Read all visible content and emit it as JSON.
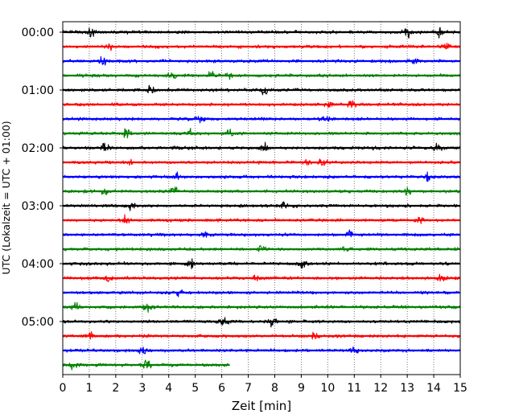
{
  "chart_data": {
    "type": "line",
    "title": "",
    "xlabel": "Zeit  [min]",
    "ylabel": "UTC (Lokalzeit = UTC + 01:00)",
    "xlim": [
      0,
      15
    ],
    "x_ticks": [
      "0",
      "1",
      "2",
      "3",
      "4",
      "5",
      "6",
      "7",
      "8",
      "9",
      "10",
      "11",
      "12",
      "13",
      "14",
      "15"
    ],
    "y_ticks": [
      {
        "label": "00:00",
        "row": 0
      },
      {
        "label": "01:00",
        "row": 4
      },
      {
        "label": "02:00",
        "row": 8
      },
      {
        "label": "03:00",
        "row": 12
      },
      {
        "label": "04:00",
        "row": 16
      },
      {
        "label": "05:00",
        "row": 20
      }
    ],
    "grid": "vertical-dotted",
    "trace_colors": [
      "#000000",
      "#ff0000",
      "#0000ff",
      "#008000"
    ],
    "rows": 24,
    "minutes_per_row": 15,
    "last_row_end_minute": 6.3,
    "series": [
      {
        "start": "00:00",
        "color": "#000000",
        "duration_min": 15,
        "events_min": [
          1.1,
          13.0,
          14.2
        ]
      },
      {
        "start": "00:15",
        "color": "#ff0000",
        "duration_min": 15,
        "events_min": [
          1.7,
          14.5
        ]
      },
      {
        "start": "00:30",
        "color": "#0000ff",
        "duration_min": 15,
        "events_min": [
          1.5,
          13.3
        ]
      },
      {
        "start": "00:45",
        "color": "#008000",
        "duration_min": 15,
        "events_min": [
          4.1,
          5.6,
          6.3
        ]
      },
      {
        "start": "01:00",
        "color": "#000000",
        "duration_min": 15,
        "events_min": [
          3.3,
          7.6
        ]
      },
      {
        "start": "01:15",
        "color": "#ff0000",
        "duration_min": 15,
        "events_min": [
          10.1,
          10.9
        ]
      },
      {
        "start": "01:30",
        "color": "#0000ff",
        "duration_min": 15,
        "events_min": [
          5.2,
          9.9
        ]
      },
      {
        "start": "01:45",
        "color": "#008000",
        "duration_min": 15,
        "events_min": [
          2.4,
          4.8,
          6.3
        ]
      },
      {
        "start": "02:00",
        "color": "#000000",
        "duration_min": 15,
        "events_min": [
          1.6,
          7.6,
          14.1
        ]
      },
      {
        "start": "02:15",
        "color": "#ff0000",
        "duration_min": 15,
        "events_min": [
          2.5,
          9.2,
          9.8
        ]
      },
      {
        "start": "02:30",
        "color": "#0000ff",
        "duration_min": 15,
        "events_min": [
          4.3,
          13.8
        ]
      },
      {
        "start": "02:45",
        "color": "#008000",
        "duration_min": 15,
        "events_min": [
          1.6,
          4.2,
          13.0
        ]
      },
      {
        "start": "03:00",
        "color": "#000000",
        "duration_min": 15,
        "events_min": [
          2.6,
          8.3
        ]
      },
      {
        "start": "03:15",
        "color": "#ff0000",
        "duration_min": 15,
        "events_min": [
          2.4,
          13.5
        ]
      },
      {
        "start": "03:30",
        "color": "#0000ff",
        "duration_min": 15,
        "events_min": [
          5.4,
          10.8
        ]
      },
      {
        "start": "03:45",
        "color": "#008000",
        "duration_min": 15,
        "events_min": [
          7.5,
          10.7
        ]
      },
      {
        "start": "04:00",
        "color": "#000000",
        "duration_min": 15,
        "events_min": [
          4.8,
          9.0
        ]
      },
      {
        "start": "04:15",
        "color": "#ff0000",
        "duration_min": 15,
        "events_min": [
          1.7,
          7.3,
          14.3
        ]
      },
      {
        "start": "04:30",
        "color": "#0000ff",
        "duration_min": 15,
        "events_min": [
          4.4
        ]
      },
      {
        "start": "04:45",
        "color": "#008000",
        "duration_min": 15,
        "events_min": [
          0.5,
          3.2
        ]
      },
      {
        "start": "05:00",
        "color": "#000000",
        "duration_min": 15,
        "events_min": [
          6.1,
          7.9
        ]
      },
      {
        "start": "05:15",
        "color": "#ff0000",
        "duration_min": 15,
        "events_min": [
          1.0,
          9.5
        ]
      },
      {
        "start": "05:30",
        "color": "#0000ff",
        "duration_min": 15,
        "events_min": [
          3.0,
          11.0
        ]
      },
      {
        "start": "05:45",
        "color": "#008000",
        "duration_min": 6.3,
        "events_min": [
          0.4,
          3.2
        ]
      }
    ]
  }
}
